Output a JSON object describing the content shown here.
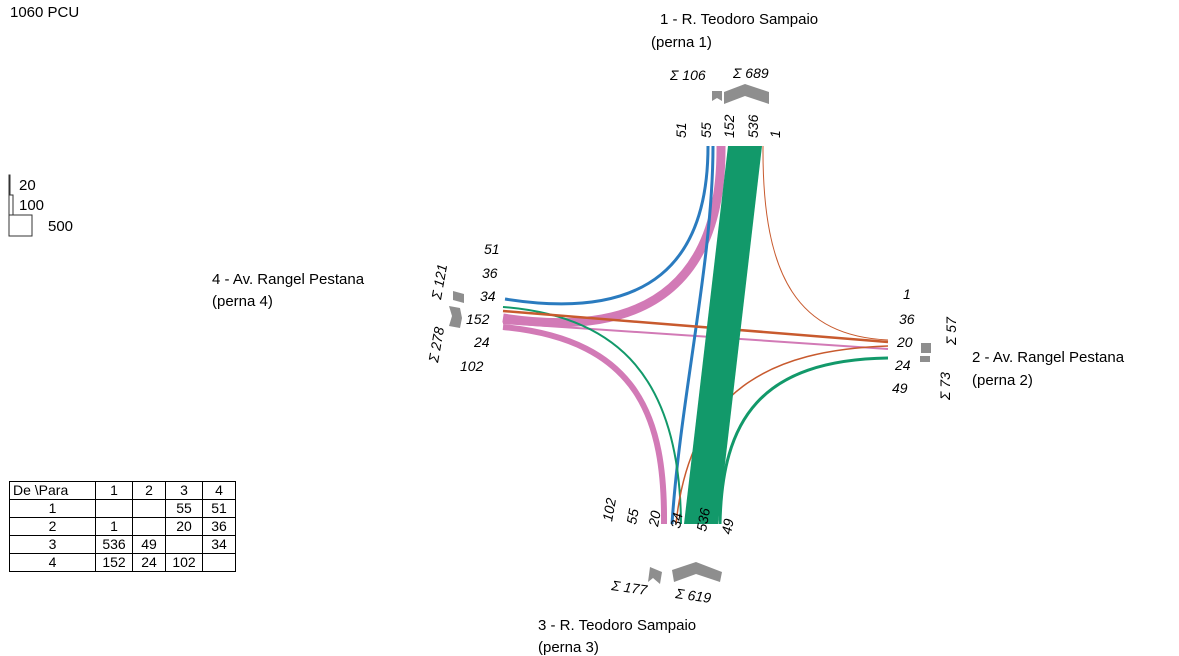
{
  "header": {
    "total": "1060 PCU"
  },
  "legend": {
    "items": [
      "20",
      "100",
      "500"
    ]
  },
  "legs": {
    "leg1": {
      "name": "1 - R. Teodoro Sampaio",
      "sub": "(perna 1)",
      "sum_in": "Σ 106",
      "sum_out": "Σ 689",
      "flows": [
        "51",
        "55",
        "152",
        "536",
        "1"
      ]
    },
    "leg2": {
      "name": "2 - Av. Rangel Pestana",
      "sub": "(perna 2)",
      "sum_in": "Σ 57",
      "sum_out": "Σ 73",
      "flows": [
        "1",
        "36",
        "20",
        "24",
        "49"
      ]
    },
    "leg3": {
      "name": "3 - R. Teodoro Sampaio",
      "sub": "(perna 3)",
      "sum_in": "Σ 177",
      "sum_out": "Σ 619",
      "flows": [
        "102",
        "55",
        "20",
        "34",
        "536",
        "49"
      ]
    },
    "leg4": {
      "name": "4 - Av. Rangel Pestana",
      "sub": "(perna 4)",
      "sum_in": "Σ 121",
      "sum_out": "Σ 278",
      "flows": [
        "51",
        "36",
        "34",
        "152",
        "24",
        "102"
      ]
    }
  },
  "colors": {
    "from_leg1": "#2a7bbf",
    "from_leg2": "#c85a2e",
    "from_leg3": "#12996a",
    "from_leg4": "#d27ab6",
    "arrow": "#8e8e8e"
  },
  "od_table": {
    "header": [
      "De \\Para",
      "1",
      "2",
      "3",
      "4"
    ],
    "rows": [
      [
        "1",
        "",
        "",
        "55",
        "51"
      ],
      [
        "2",
        "1",
        "",
        "20",
        "36"
      ],
      [
        "3",
        "536",
        "49",
        "",
        "34"
      ],
      [
        "4",
        "152",
        "24",
        "102",
        ""
      ]
    ]
  }
}
